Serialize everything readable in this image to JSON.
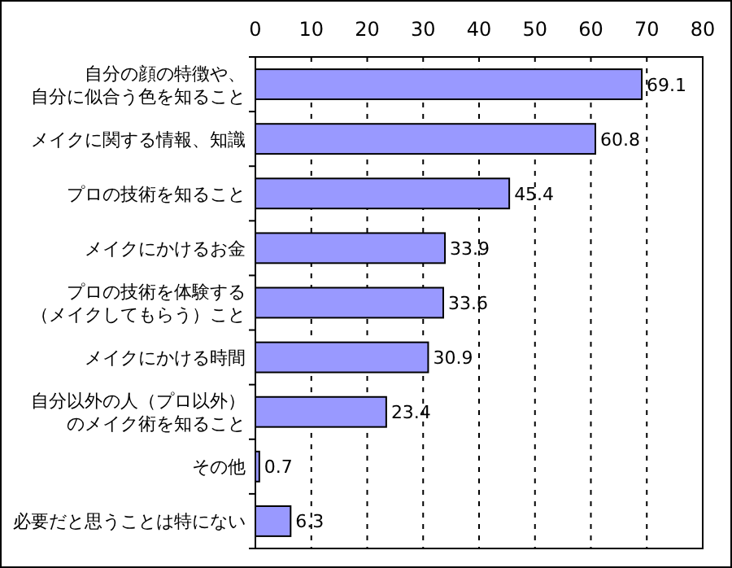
{
  "chart_data": {
    "type": "bar",
    "orientation": "horizontal",
    "categories": [
      "自分の顔の特徴や、自分に似合う色を知ること",
      "メイクに関する情報、知識",
      "プロの技術を知ること",
      "メイクにかけるお金",
      "プロの技術を体験する（メイクしてもらう）こと",
      "メイクにかける時間",
      "自分以外の人（プロ以外）のメイク術を知ること",
      "その他",
      "必要だと思うことは特にない"
    ],
    "values": [
      69.1,
      60.8,
      45.4,
      33.9,
      33.6,
      30.9,
      23.4,
      0.7,
      6.3
    ],
    "color": "#9999ff",
    "xlim": [
      0,
      80
    ],
    "xticks": [
      0,
      10,
      20,
      30,
      40,
      50,
      60,
      70,
      80
    ],
    "grid": "x",
    "data_labels": true
  }
}
